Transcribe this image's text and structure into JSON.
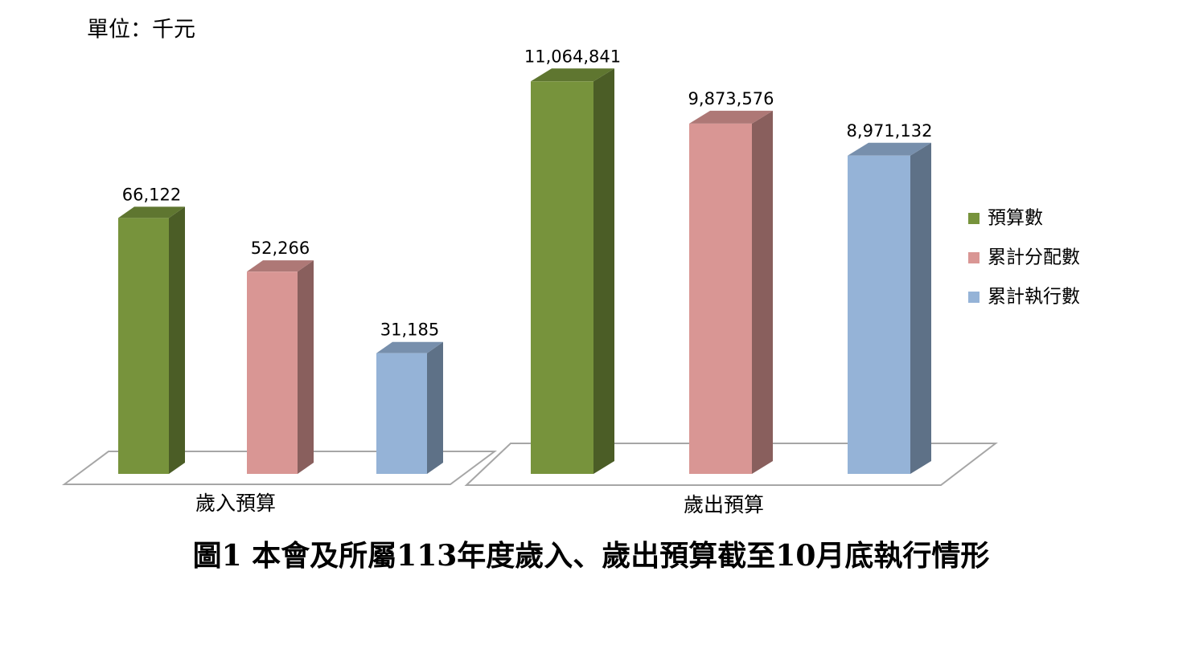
{
  "chart_data": [
    {
      "type": "bar3d",
      "title": "圖1 本會及所屬113年度歲入、歲出預算截至10月底執行情形",
      "subtitle": "單位：千元",
      "categories": [
        "歲入預算"
      ],
      "series": [
        {
          "name": "預算數",
          "color": "#77933c",
          "values": [
            66122
          ],
          "value_labels": [
            "66,122"
          ]
        },
        {
          "name": "累計分配數",
          "color": "#d99694",
          "values": [
            52266
          ],
          "value_labels": [
            "52,266"
          ]
        },
        {
          "name": "累計執行數",
          "color": "#95b3d7",
          "values": [
            31185
          ],
          "value_labels": [
            "31,185"
          ]
        }
      ],
      "ylim": [
        0,
        110000
      ],
      "legend": "right"
    },
    {
      "type": "bar3d",
      "categories": [
        "歲出預算"
      ],
      "series": [
        {
          "color": "#77933c",
          "values": [
            11064841
          ],
          "value_labels": [
            "11,064,841"
          ]
        },
        {
          "color": "#d99694",
          "values": [
            9873576
          ],
          "value_labels": [
            "9,873,576"
          ]
        },
        {
          "color": "#95b3d7",
          "values": [
            8971132
          ],
          "value_labels": [
            "8,971,132"
          ]
        }
      ],
      "ylim": [
        0,
        12000000
      ]
    }
  ]
}
